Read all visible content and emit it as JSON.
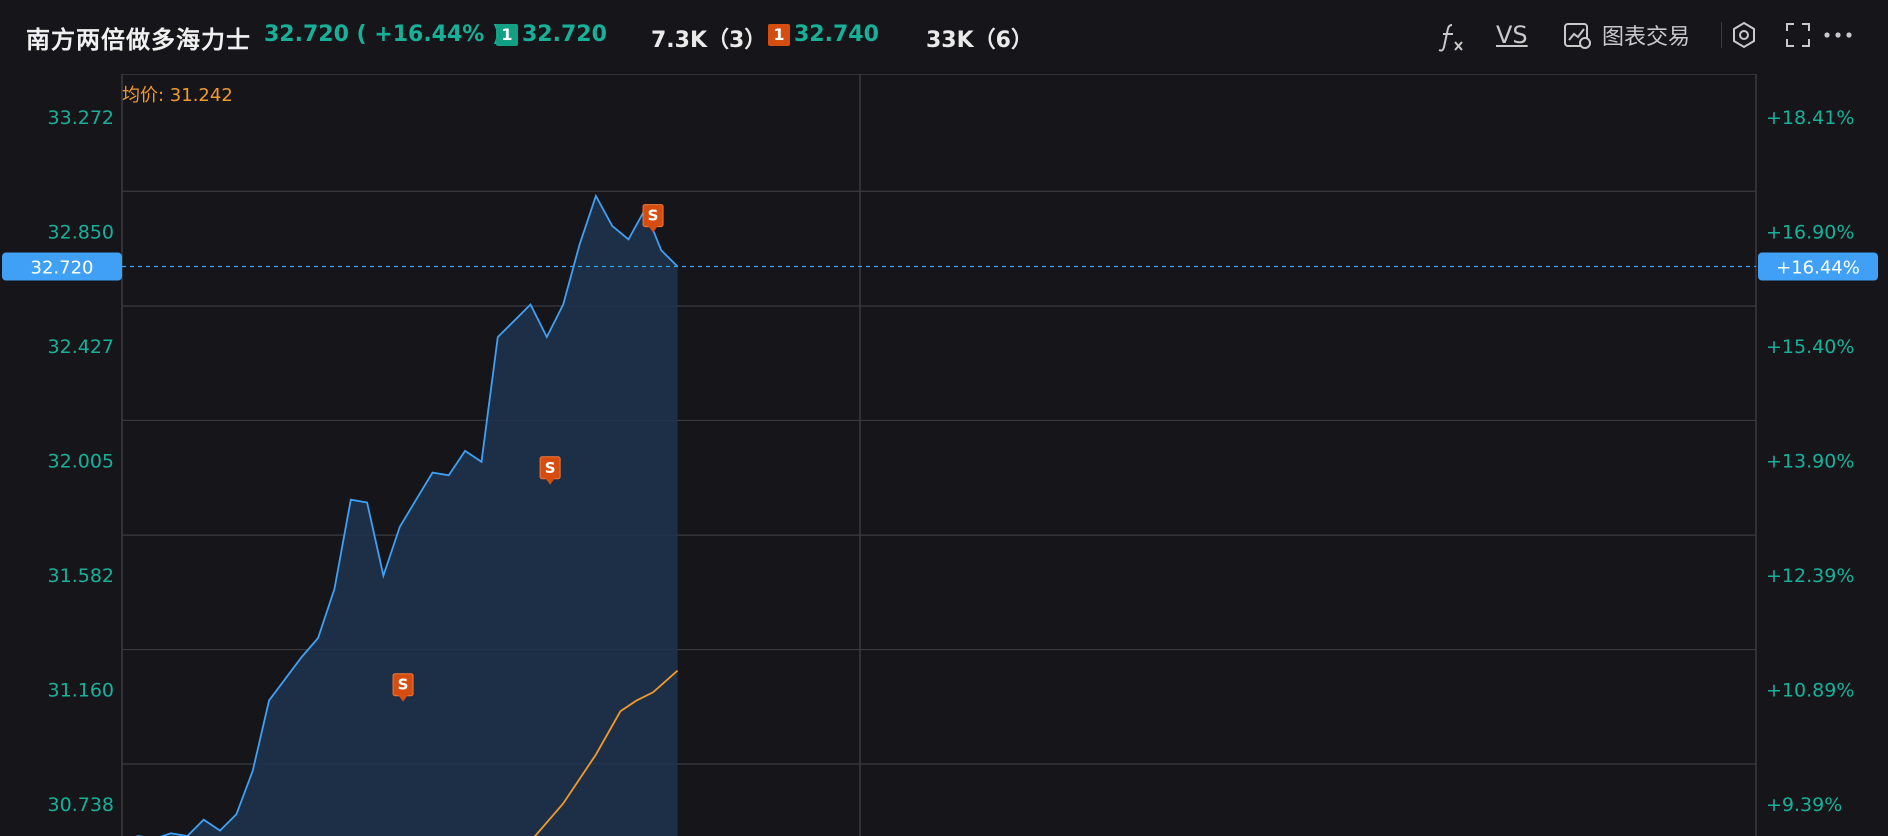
{
  "header": {
    "title": "南方两倍做多海力士",
    "price_change": "32.720 ( +16.44% )",
    "bid": {
      "level": "1",
      "price": "32.720"
    },
    "bid_volume": "7.3K（3）",
    "ask": {
      "level": "1",
      "price": "32.740"
    },
    "ask_volume": "33K（6）"
  },
  "toolbar": {
    "formula_icon": "fx-icon",
    "vs_label": "VS",
    "chart_trade_label": "图表交易",
    "chart_trade_icon": "chart-trade-icon",
    "settings_icon": "settings-icon",
    "fullscreen_icon": "fullscreen-icon",
    "more_icon": "more-icon"
  },
  "chart_data": {
    "type": "line",
    "title": "",
    "avg_price_label": "均价: 31.242",
    "current_price": 32.72,
    "current_price_label": "32.720",
    "current_change_label": "+16.44%",
    "ylim": [
      30.62,
      33.43
    ],
    "y_ticks_left": [
      "33.272",
      "32.850",
      "32.427",
      "32.005",
      "31.582",
      "31.160",
      "30.738"
    ],
    "y_tick_values": [
      33.272,
      32.85,
      32.427,
      32.005,
      31.582,
      31.16,
      30.738
    ],
    "y_ticks_right": [
      "+18.41%",
      "+16.90%",
      "+15.40%",
      "+13.90%",
      "+12.39%",
      "+10.89%",
      "+9.39%"
    ],
    "session_fraction_elapsed": 0.34,
    "series": [
      {
        "name": "",
        "color": "#3fa0f6",
        "x": [
          0.0,
          0.01,
          0.02,
          0.03,
          0.04,
          0.05,
          0.06,
          0.07,
          0.08,
          0.09,
          0.1,
          0.11,
          0.12,
          0.13,
          0.14,
          0.15,
          0.16,
          0.17,
          0.18,
          0.19,
          0.2,
          0.21,
          0.22,
          0.23,
          0.24,
          0.25,
          0.26,
          0.27,
          0.28,
          0.29,
          0.3,
          0.31,
          0.32,
          0.33,
          0.34
        ],
        "values": [
          30.6,
          30.62,
          30.61,
          30.63,
          30.62,
          30.68,
          30.64,
          30.7,
          30.86,
          31.12,
          31.2,
          31.28,
          31.35,
          31.53,
          31.86,
          31.85,
          31.58,
          31.76,
          31.86,
          31.96,
          31.95,
          32.04,
          32.0,
          32.46,
          32.52,
          32.58,
          32.46,
          32.58,
          32.8,
          32.98,
          32.87,
          32.82,
          32.93,
          32.78,
          32.72
        ]
      },
      {
        "name": "",
        "color": "#f19a2a",
        "x": [
          0.23,
          0.25,
          0.27,
          0.29,
          0.305,
          0.315,
          0.325,
          0.34
        ],
        "values": [
          30.48,
          30.6,
          30.74,
          30.92,
          31.08,
          31.12,
          31.15,
          31.23
        ]
      }
    ],
    "markers": [
      {
        "label": "S",
        "x": 0.172,
        "value": 31.13
      },
      {
        "label": "S",
        "x": 0.262,
        "value": 31.93
      },
      {
        "label": "S",
        "x": 0.325,
        "value": 32.86
      }
    ],
    "grid": true
  }
}
